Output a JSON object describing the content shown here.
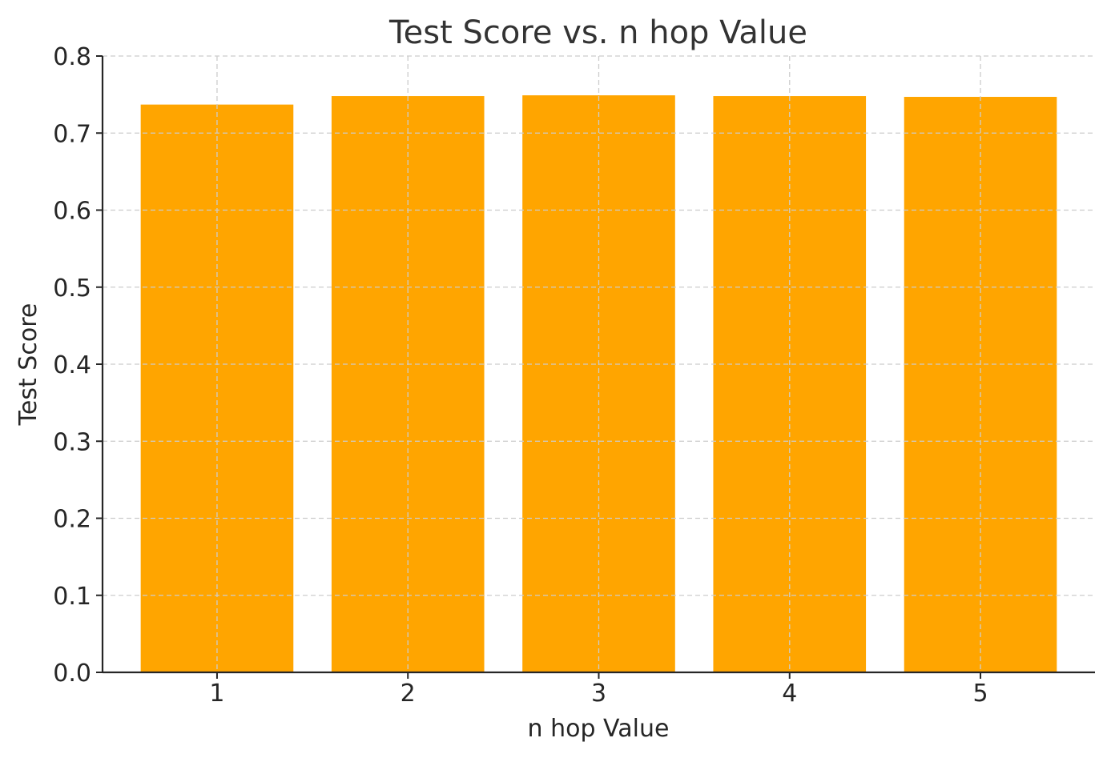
{
  "chart_data": {
    "type": "bar",
    "title": "Test Score vs. n hop Value",
    "xlabel": "n hop Value",
    "ylabel": "Test Score",
    "categories": [
      "1",
      "2",
      "3",
      "4",
      "5"
    ],
    "values": [
      0.737,
      0.748,
      0.749,
      0.748,
      0.747
    ],
    "ylim": [
      0,
      0.8
    ],
    "yticks": [
      "0.0",
      "0.1",
      "0.2",
      "0.3",
      "0.4",
      "0.5",
      "0.6",
      "0.7",
      "0.8"
    ],
    "bar_color": "#FFA500",
    "grid": true,
    "grid_style": "dashed",
    "legend": "none"
  }
}
